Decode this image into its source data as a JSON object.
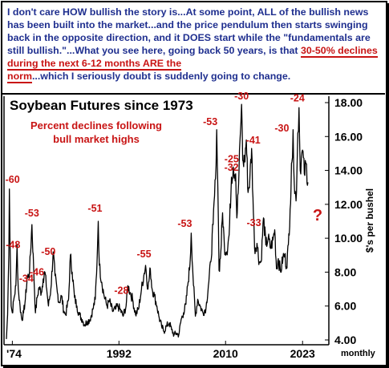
{
  "header": {
    "part1": "I don't care HOW bullish the story is...At some point, ALL of the bullish news has been built into the market...and the price pendulum then starts swinging back in the opposite direction, and it DOES start while the \"fundamentals are still bullish.\"...What you see here, going back 50 years, is that ",
    "highlight1": "30-50% declines during the next 6-12 months ARE the",
    "highlight2": "norm",
    "part2": "...which I seriously doubt is suddenly going to change."
  },
  "colors": {
    "header_text": "#1f2f8f",
    "annotation_red": "#c81414",
    "line": "#000000"
  },
  "chart_data": {
    "type": "line",
    "title": "Soybean Futures since 1973",
    "subtitle": "Percent declines following bull market highs",
    "ylabel": "$'s per bushel",
    "xlabel": "monthly",
    "ylim": [
      4,
      18
    ],
    "y_ticks": [
      "4.00",
      "6.00",
      "8.00",
      "10.00",
      "12.00",
      "14.00",
      "16.00",
      "18.00"
    ],
    "y_tick_values": [
      4,
      6,
      8,
      10,
      12,
      14,
      16,
      18
    ],
    "x_ticks": [
      "'74",
      "1992",
      "2010",
      "2023"
    ],
    "x_tick_values": [
      1974,
      1992,
      2010,
      2023
    ],
    "xlim": [
      1973,
      2025
    ],
    "question_mark": "?",
    "series": [
      {
        "points": [
          [
            1973.0,
            4.0
          ],
          [
            1973.2,
            5.5
          ],
          [
            1973.4,
            9.0
          ],
          [
            1973.5,
            12.9
          ],
          [
            1973.6,
            10.0
          ],
          [
            1973.8,
            6.0
          ],
          [
            1974.0,
            5.6
          ],
          [
            1974.3,
            6.5
          ],
          [
            1974.6,
            7.2
          ],
          [
            1974.8,
            9.6
          ],
          [
            1975.0,
            7.0
          ],
          [
            1975.3,
            6.0
          ],
          [
            1975.6,
            5.2
          ],
          [
            1975.9,
            5.6
          ],
          [
            1976.2,
            6.4
          ],
          [
            1976.5,
            7.6
          ],
          [
            1976.9,
            8.0
          ],
          [
            1977.3,
            10.8
          ],
          [
            1977.6,
            8.2
          ],
          [
            1977.9,
            5.6
          ],
          [
            1978.2,
            6.5
          ],
          [
            1978.5,
            7.1
          ],
          [
            1978.9,
            6.8
          ],
          [
            1979.2,
            7.6
          ],
          [
            1979.5,
            8.0
          ],
          [
            1979.8,
            7.0
          ],
          [
            1980.1,
            6.0
          ],
          [
            1980.5,
            7.0
          ],
          [
            1980.9,
            9.2
          ],
          [
            1981.2,
            7.8
          ],
          [
            1981.6,
            6.8
          ],
          [
            1981.9,
            6.2
          ],
          [
            1982.3,
            6.6
          ],
          [
            1982.7,
            5.7
          ],
          [
            1983.0,
            5.5
          ],
          [
            1983.5,
            6.4
          ],
          [
            1983.8,
            9.0
          ],
          [
            1984.1,
            8.0
          ],
          [
            1984.5,
            6.5
          ],
          [
            1984.9,
            6.0
          ],
          [
            1985.3,
            5.5
          ],
          [
            1985.8,
            5.2
          ],
          [
            1986.2,
            4.9
          ],
          [
            1986.7,
            5.1
          ],
          [
            1987.1,
            5.2
          ],
          [
            1987.6,
            5.8
          ],
          [
            1988.0,
            6.4
          ],
          [
            1988.3,
            8.6
          ],
          [
            1988.5,
            11.0
          ],
          [
            1988.7,
            8.4
          ],
          [
            1989.1,
            7.4
          ],
          [
            1989.5,
            6.6
          ],
          [
            1990.0,
            6.0
          ],
          [
            1990.4,
            6.3
          ],
          [
            1990.9,
            5.7
          ],
          [
            1991.4,
            5.8
          ],
          [
            1991.8,
            6.0
          ],
          [
            1992.2,
            5.8
          ],
          [
            1992.7,
            5.4
          ],
          [
            1993.2,
            6.0
          ],
          [
            1993.5,
            7.2
          ],
          [
            1993.9,
            6.8
          ],
          [
            1994.3,
            6.4
          ],
          [
            1994.8,
            5.5
          ],
          [
            1995.3,
            5.8
          ],
          [
            1995.8,
            7.0
          ],
          [
            1996.2,
            7.8
          ],
          [
            1996.5,
            8.4
          ],
          [
            1996.9,
            7.0
          ],
          [
            1997.3,
            8.2
          ],
          [
            1997.6,
            7.0
          ],
          [
            1998.0,
            6.6
          ],
          [
            1998.4,
            6.0
          ],
          [
            1998.8,
            5.3
          ],
          [
            1999.2,
            4.8
          ],
          [
            1999.6,
            4.5
          ],
          [
            2000.0,
            4.8
          ],
          [
            2000.5,
            5.0
          ],
          [
            2000.9,
            4.6
          ],
          [
            2001.3,
            4.3
          ],
          [
            2001.7,
            4.4
          ],
          [
            2002.1,
            4.3
          ],
          [
            2002.5,
            5.2
          ],
          [
            2002.9,
            5.6
          ],
          [
            2003.3,
            6.1
          ],
          [
            2003.6,
            7.2
          ],
          [
            2004.0,
            8.5
          ],
          [
            2004.2,
            10.3
          ],
          [
            2004.5,
            7.8
          ],
          [
            2004.9,
            5.4
          ],
          [
            2005.3,
            6.4
          ],
          [
            2005.7,
            6.0
          ],
          [
            2006.2,
            5.6
          ],
          [
            2006.7,
            5.9
          ],
          [
            2007.1,
            7.2
          ],
          [
            2007.5,
            8.6
          ],
          [
            2007.9,
            10.8
          ],
          [
            2008.3,
            13.5
          ],
          [
            2008.5,
            16.4
          ],
          [
            2008.7,
            13.0
          ],
          [
            2008.9,
            8.1
          ],
          [
            2009.2,
            9.2
          ],
          [
            2009.5,
            11.5
          ],
          [
            2009.8,
            9.5
          ],
          [
            2010.2,
            9.2
          ],
          [
            2010.6,
            10.2
          ],
          [
            2011.0,
            13.6
          ],
          [
            2011.3,
            14.2
          ],
          [
            2011.7,
            13.8
          ],
          [
            2011.9,
            11.2
          ],
          [
            2012.2,
            13.2
          ],
          [
            2012.5,
            16.2
          ],
          [
            2012.7,
            17.9
          ],
          [
            2012.9,
            14.6
          ],
          [
            2013.2,
            14.5
          ],
          [
            2013.5,
            15.8
          ],
          [
            2013.8,
            12.7
          ],
          [
            2014.1,
            13.5
          ],
          [
            2014.4,
            15.3
          ],
          [
            2014.7,
            11.5
          ],
          [
            2014.9,
            9.4
          ],
          [
            2015.3,
            9.7
          ],
          [
            2015.7,
            8.6
          ],
          [
            2016.0,
            8.6
          ],
          [
            2016.4,
            11.2
          ],
          [
            2016.8,
            9.6
          ],
          [
            2017.2,
            10.0
          ],
          [
            2017.6,
            9.4
          ],
          [
            2018.0,
            9.9
          ],
          [
            2018.3,
            10.5
          ],
          [
            2018.6,
            8.2
          ],
          [
            2018.9,
            8.8
          ],
          [
            2019.3,
            8.0
          ],
          [
            2019.7,
            8.9
          ],
          [
            2020.0,
            9.0
          ],
          [
            2020.3,
            8.3
          ],
          [
            2020.6,
            9.6
          ],
          [
            2020.9,
            11.7
          ],
          [
            2021.2,
            14.5
          ],
          [
            2021.4,
            16.4
          ],
          [
            2021.6,
            13.2
          ],
          [
            2021.9,
            12.2
          ],
          [
            2022.2,
            16.2
          ],
          [
            2022.4,
            17.7
          ],
          [
            2022.6,
            14.0
          ],
          [
            2022.8,
            14.8
          ],
          [
            2023.0,
            15.2
          ],
          [
            2023.3,
            13.8
          ],
          [
            2023.6,
            14.4
          ],
          [
            2023.9,
            13.3
          ]
        ]
      }
    ],
    "annotations": [
      {
        "text": "-60",
        "x": 1973.5,
        "y": 12.9
      },
      {
        "text": "-53",
        "x": 1977.3,
        "y": 10.8
      },
      {
        "text": "-48",
        "x": 1974.8,
        "y": 9.6
      },
      {
        "text": "-34",
        "x": 1976.9,
        "y": 8.0
      },
      {
        "text": "-46",
        "x": 1979.5,
        "y": 8.0
      },
      {
        "text": "-50",
        "x": 1980.9,
        "y": 9.2
      },
      {
        "text": "-51",
        "x": 1988.5,
        "y": 11.0
      },
      {
        "text": "-28",
        "x": 1993.5,
        "y": 7.2
      },
      {
        "text": "-55",
        "x": 1996.5,
        "y": 8.4
      },
      {
        "text": "-53",
        "x": 2004.2,
        "y": 10.3
      },
      {
        "text": "-53",
        "x": 2008.5,
        "y": 16.4
      },
      {
        "text": "-32",
        "x": 2011.0,
        "y": 13.6
      },
      {
        "text": "-25",
        "x": 2011.3,
        "y": 14.2
      },
      {
        "text": "-30",
        "x": 2012.7,
        "y": 17.9
      },
      {
        "text": "-41",
        "x": 2014.4,
        "y": 15.3
      },
      {
        "text": "-33",
        "x": 2016.4,
        "y": 11.2
      },
      {
        "text": "-30",
        "x": 2021.4,
        "y": 16.4
      },
      {
        "text": "-24",
        "x": 2022.4,
        "y": 17.7
      }
    ]
  }
}
